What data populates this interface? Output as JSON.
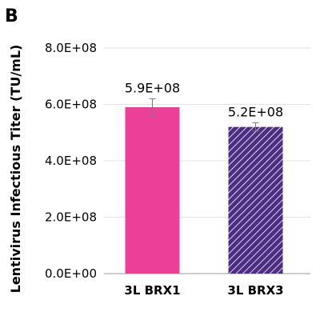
{
  "panel_label": "B",
  "chart_data": {
    "type": "bar",
    "categories": [
      "3L BRX1",
      "3L BRX3"
    ],
    "values": [
      590000000,
      520000000
    ],
    "errors": [
      30000000,
      15000000
    ],
    "data_labels": [
      "5.9E+08",
      "5.2E+08"
    ],
    "title": "",
    "xlabel": "",
    "ylabel": "Lentivirus Infectious Titer (TU/mL)",
    "ylim": [
      0,
      800000000
    ],
    "yticks": [
      0,
      200000000,
      400000000,
      600000000,
      800000000
    ],
    "ytick_labels": [
      "0.0E+00",
      "2.0E+08",
      "4.0E+08",
      "6.0E+08",
      "8.0E+08"
    ],
    "grid": true,
    "legend": "none",
    "bar_styles": [
      {
        "fill": "#EC3F97",
        "pattern": "solid"
      },
      {
        "fill": "#4B2E83",
        "pattern": "diagonal-hatch",
        "hatch_color": "#ffffff"
      }
    ]
  }
}
